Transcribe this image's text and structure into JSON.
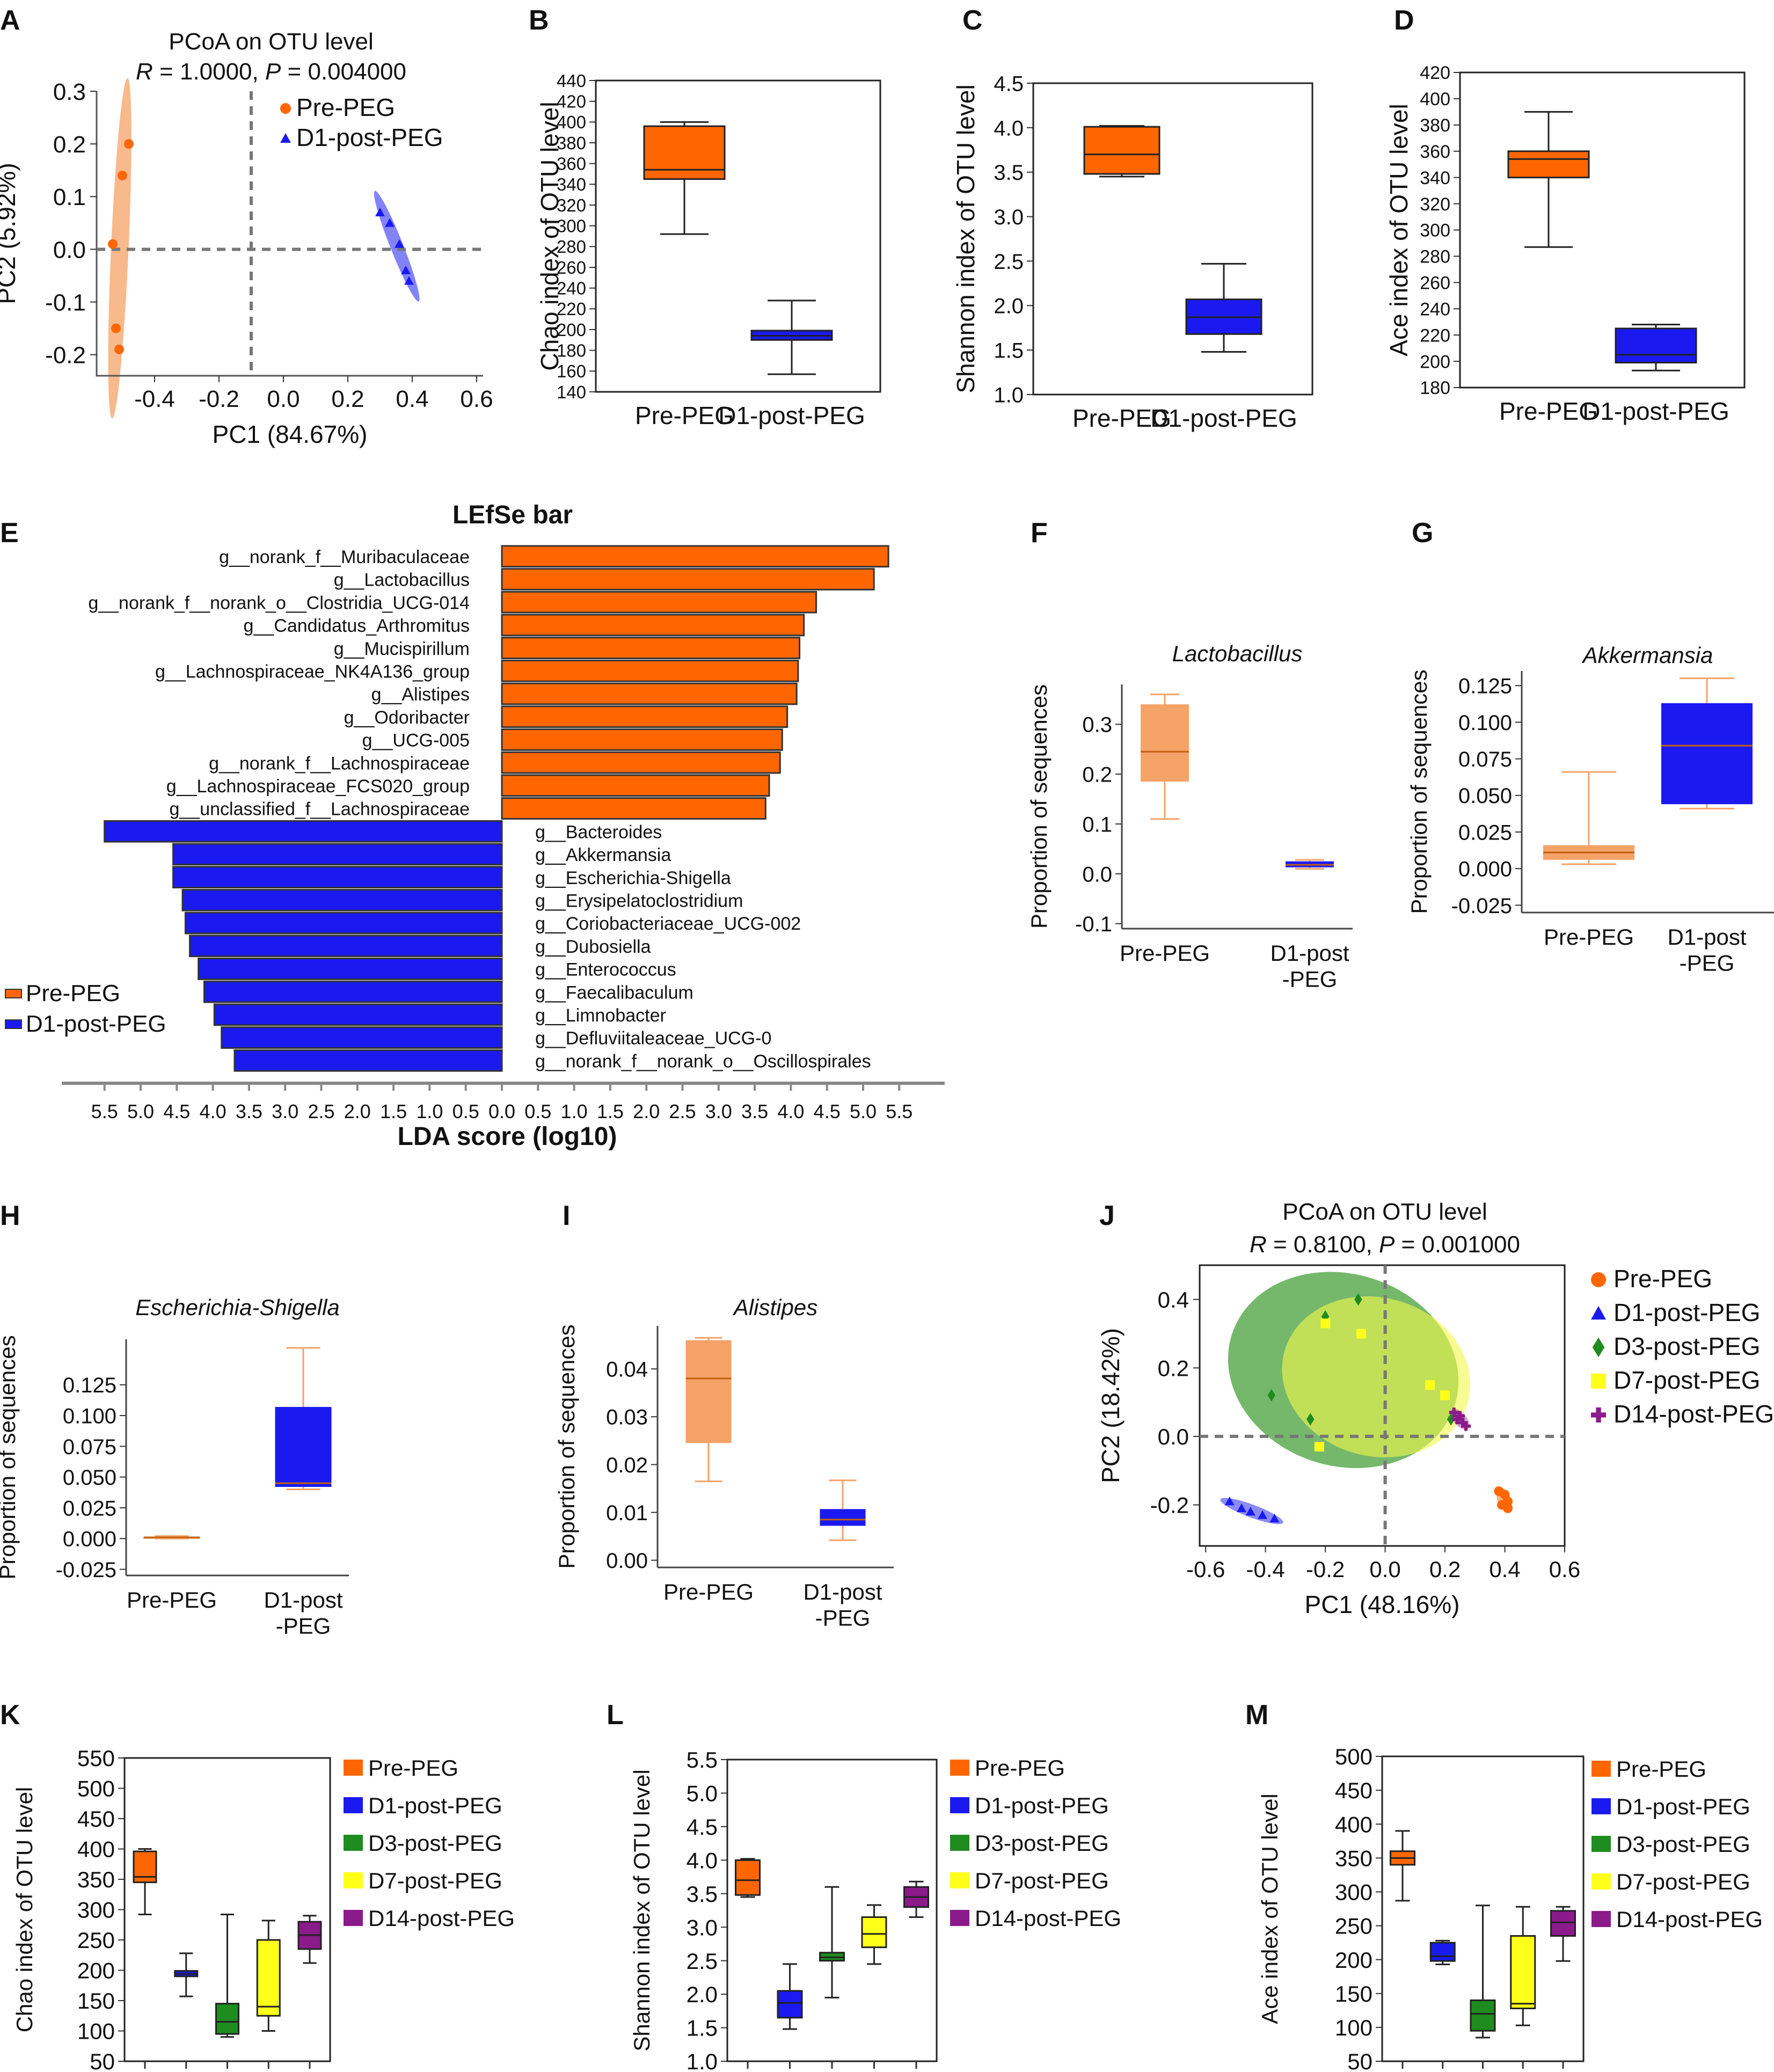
{
  "colors": {
    "pre": "#FF6600",
    "post": "#1A1AF0",
    "d3": "#1E8C1E",
    "d7": "#FFFF1A",
    "d14": "#8B1A8B",
    "pre_light": "#F5A267",
    "post_light": "#5A5AF5",
    "axis": "#333333",
    "dash": "#777777"
  },
  "panels": {
    "A": {
      "letter": "A",
      "title": "PCoA on OTU level",
      "stat_r": "R",
      "stat_r_val": " = 1.0000, ",
      "stat_p": "P",
      "stat_p_val": " = 0.004000"
    },
    "B": {
      "letter": "B"
    },
    "C": {
      "letter": "C"
    },
    "D": {
      "letter": "D"
    },
    "E": {
      "letter": "E"
    },
    "F": {
      "letter": "F"
    },
    "G": {
      "letter": "G"
    },
    "H": {
      "letter": "H"
    },
    "I": {
      "letter": "I"
    },
    "J": {
      "letter": "J",
      "title": "PCoA on OTU level",
      "stat_r": "R",
      "stat_r_val": " = 0.8100, ",
      "stat_p": "P",
      "stat_p_val": " = 0.001000"
    },
    "K": {
      "letter": "K"
    },
    "L": {
      "letter": "L"
    },
    "M": {
      "letter": "M"
    }
  },
  "chart_data": [
    {
      "id": "A",
      "type": "scatter",
      "title": "PCoA on OTU level",
      "xlabel": "PC1 (84.67%)",
      "ylabel": "PC2 (5.92%)",
      "xlim": [
        -0.58,
        0.62
      ],
      "ylim": [
        -0.24,
        0.3
      ],
      "xticks": [
        "-0.4",
        "-0.2",
        "0.0",
        "0.2",
        "0.4",
        "0.6"
      ],
      "yticks": [
        "0.3",
        "0.2",
        "0.1",
        "0.0",
        "-0.1",
        "-0.2"
      ],
      "legend": [
        "Pre-PEG",
        "D1-post-PEG"
      ],
      "series": [
        {
          "name": "Pre-PEG",
          "marker": "circle",
          "x": [
            -0.48,
            -0.5,
            -0.53,
            -0.52,
            -0.51
          ],
          "y": [
            0.2,
            0.14,
            0.01,
            -0.15,
            -0.19
          ]
        },
        {
          "name": "D1-post-PEG",
          "marker": "triangle",
          "x": [
            0.3,
            0.33,
            0.36,
            0.38,
            0.39
          ],
          "y": [
            0.07,
            0.05,
            0.01,
            -0.04,
            -0.06
          ]
        }
      ]
    },
    {
      "id": "B",
      "type": "box",
      "ylabel": "Chao index of OTU level",
      "ylim": [
        140,
        440
      ],
      "yticks": [
        "440",
        "420",
        "400",
        "380",
        "360",
        "340",
        "320",
        "300",
        "280",
        "260",
        "240",
        "220",
        "200",
        "180",
        "160",
        "140"
      ],
      "categories": [
        "Pre-PEG",
        "D1-post-PEG"
      ],
      "boxes": [
        {
          "name": "Pre-PEG",
          "min": 292,
          "q1": 345,
          "median": 354,
          "q3": 396,
          "max": 400
        },
        {
          "name": "D1-post-PEG",
          "min": 157,
          "q1": 190,
          "median": 194,
          "q3": 199,
          "max": 228
        }
      ]
    },
    {
      "id": "C",
      "type": "box",
      "ylabel": "Shannon index of OTU level",
      "ylim": [
        1.0,
        4.5
      ],
      "yticks": [
        "4.5",
        "4.0",
        "3.5",
        "3.0",
        "2.5",
        "2.0",
        "1.5",
        "1.0"
      ],
      "categories": [
        "Pre-PEG",
        "D1-post-PEG"
      ],
      "boxes": [
        {
          "name": "Pre-PEG",
          "min": 3.45,
          "q1": 3.48,
          "median": 3.7,
          "q3": 4.01,
          "max": 4.02
        },
        {
          "name": "D1-post-PEG",
          "min": 1.48,
          "q1": 1.68,
          "median": 1.87,
          "q3": 2.07,
          "max": 2.47
        }
      ]
    },
    {
      "id": "D",
      "type": "box",
      "ylabel": "Ace index of OTU level",
      "ylim": [
        180,
        420
      ],
      "yticks": [
        "420",
        "400",
        "380",
        "360",
        "340",
        "320",
        "300",
        "280",
        "260",
        "240",
        "220",
        "200",
        "180"
      ],
      "categories": [
        "Pre-PEG",
        "D1-post-PEG"
      ],
      "boxes": [
        {
          "name": "Pre-PEG",
          "min": 287,
          "q1": 340,
          "median": 354,
          "q3": 360,
          "max": 390
        },
        {
          "name": "D1-post-PEG",
          "min": 193,
          "q1": 199,
          "median": 205,
          "q3": 225,
          "max": 228
        }
      ]
    },
    {
      "id": "E",
      "type": "bar",
      "title": "LEfSe bar",
      "xlabel": "LDA score (log10)",
      "legend": [
        "Pre-PEG",
        "D1-post-PEG"
      ],
      "xticks_left": [
        "5.5",
        "5.0",
        "4.5",
        "4.0",
        "3.5",
        "3.0",
        "2.5",
        "2.0",
        "1.5",
        "1.0",
        "0.5"
      ],
      "xtick_zero": "0.0",
      "xticks_right": [
        "0.5",
        "1.0",
        "1.5",
        "2.0",
        "2.5",
        "3.0",
        "3.5",
        "4.0",
        "4.5",
        "5.0",
        "5.5"
      ],
      "series": [
        {
          "name": "Pre-PEG",
          "categories": [
            "g__norank_f__Muribaculaceae",
            "g__Lactobacillus",
            "g__norank_f__norank_o__Clostridia_UCG-014",
            "g__Candidatus_Arthromitus",
            "g__Mucispirillum",
            "g__Lachnospiraceae_NK4A136_group",
            "g__Alistipes",
            "g__Odoribacter",
            "g__UCG-005",
            "g__norank_f__Lachnospiraceae",
            "g__Lachnospiraceae_FCS020_group",
            "g__unclassified_f__Lachnospiraceae"
          ],
          "values": [
            5.35,
            5.15,
            4.35,
            4.18,
            4.12,
            4.1,
            4.08,
            3.95,
            3.88,
            3.85,
            3.7,
            3.65
          ]
        },
        {
          "name": "D1-post-PEG",
          "categories": [
            "g__Bacteroides",
            "g__Akkermansia",
            "g__Escherichia-Shigella",
            "g__Erysipelatoclostridium",
            "g__Coriobacteriaceae_UCG-002",
            "g__Dubosiella",
            "g__Enterococcus",
            "g__Faecalibaculum",
            "g__Limnobacter",
            "g__Defluviitaleaceae_UCG-0",
            "g__norank_f__norank_o__Oscillospirales"
          ],
          "values": [
            5.5,
            4.55,
            4.55,
            4.42,
            4.38,
            4.32,
            4.2,
            4.12,
            3.98,
            3.88,
            3.7
          ]
        }
      ]
    },
    {
      "id": "F",
      "type": "box",
      "title": "Lactobacillus",
      "ylabel": "Proportion of sequences",
      "ylim": [
        -0.11,
        0.38
      ],
      "yticks": [
        "0.3",
        "0.2",
        "0.1",
        "0.0",
        "-0.1"
      ],
      "categories": [
        "Pre-PEG",
        "D1-post\n-PEG"
      ],
      "boxes": [
        {
          "name": "Pre-PEG",
          "min": 0.11,
          "q1": 0.185,
          "median": 0.245,
          "q3": 0.34,
          "max": 0.36
        },
        {
          "name": "D1-post-PEG",
          "min": 0.01,
          "q1": 0.013,
          "median": 0.018,
          "q3": 0.025,
          "max": 0.028
        }
      ]
    },
    {
      "id": "G",
      "type": "box",
      "title": "Akkermansia",
      "ylabel": "Proportion of sequences",
      "ylim": [
        -0.03,
        0.135
      ],
      "yticks": [
        "0.125",
        "0.100",
        "0.075",
        "0.050",
        "0.025",
        "0.000",
        "-0.025"
      ],
      "categories": [
        "Pre-PEG",
        "D1-post\n-PEG"
      ],
      "boxes": [
        {
          "name": "Pre-PEG",
          "min": 0.003,
          "q1": 0.006,
          "median": 0.011,
          "q3": 0.016,
          "max": 0.066
        },
        {
          "name": "D1-post-PEG",
          "min": 0.041,
          "q1": 0.044,
          "median": 0.084,
          "q3": 0.113,
          "max": 0.13
        }
      ]
    },
    {
      "id": "H",
      "type": "box",
      "title": "Escherichia-Shigella",
      "ylabel": "Proportion of sequences",
      "ylim": [
        -0.03,
        0.162
      ],
      "yticks": [
        "0.125",
        "0.100",
        "0.075",
        "0.050",
        "0.025",
        "0.000",
        "-0.025"
      ],
      "categories": [
        "Pre-PEG",
        "D1-post\n-PEG"
      ],
      "boxes": [
        {
          "name": "Pre-PEG",
          "min": 0.0,
          "q1": 0.0005,
          "median": 0.001,
          "q3": 0.0015,
          "max": 0.002
        },
        {
          "name": "D1-post-PEG",
          "min": 0.04,
          "q1": 0.042,
          "median": 0.045,
          "q3": 0.107,
          "max": 0.155
        }
      ]
    },
    {
      "id": "I",
      "type": "box",
      "title": "Alistipes",
      "ylabel": "Proportion of sequences",
      "ylim": [
        -0.0015,
        0.049
      ],
      "yticks": [
        "0.04",
        "0.03",
        "0.02",
        "0.01",
        "0.00"
      ],
      "categories": [
        "Pre-PEG",
        "D1-post\n-PEG"
      ],
      "boxes": [
        {
          "name": "Pre-PEG",
          "min": 0.0165,
          "q1": 0.0245,
          "median": 0.038,
          "q3": 0.046,
          "max": 0.0465
        },
        {
          "name": "D1-post-PEG",
          "min": 0.0042,
          "q1": 0.0072,
          "median": 0.0085,
          "q3": 0.0107,
          "max": 0.0167
        }
      ]
    },
    {
      "id": "J",
      "type": "scatter",
      "title": "PCoA on OTU level",
      "xlabel": "PC1 (48.16%)",
      "ylabel": "PC2 (18.42%)",
      "xlim": [
        -0.62,
        0.6
      ],
      "ylim": [
        -0.32,
        0.5
      ],
      "xticks": [
        "-0.6",
        "-0.4",
        "-0.2",
        "0.0",
        "0.2",
        "0.4",
        "0.6"
      ],
      "yticks": [
        "0.4",
        "0.2",
        "0.0",
        "-0.2"
      ],
      "legend": [
        "Pre-PEG",
        "D1-post-PEG",
        "D3-post-PEG",
        "D7-post-PEG",
        "D14-post-PEG"
      ],
      "series": [
        {
          "name": "Pre-PEG",
          "marker": "circle",
          "x": [
            0.38,
            0.4,
            0.41,
            0.39,
            0.41
          ],
          "y": [
            -0.16,
            -0.17,
            -0.19,
            -0.2,
            -0.21
          ]
        },
        {
          "name": "D1-post-PEG",
          "marker": "triangle",
          "x": [
            -0.52,
            -0.48,
            -0.45,
            -0.41,
            -0.37
          ],
          "y": [
            -0.19,
            -0.21,
            -0.22,
            -0.23,
            -0.24
          ]
        },
        {
          "name": "D3-post-PEG",
          "marker": "diamond",
          "x": [
            -0.2,
            -0.09,
            -0.38,
            -0.25,
            0.22
          ],
          "y": [
            0.35,
            0.4,
            0.12,
            0.05,
            0.05
          ]
        },
        {
          "name": "D7-post-PEG",
          "marker": "square",
          "x": [
            -0.2,
            -0.08,
            0.15,
            0.2,
            -0.22
          ],
          "y": [
            0.33,
            0.3,
            0.15,
            0.12,
            -0.03
          ]
        },
        {
          "name": "D14-post-PEG",
          "marker": "plus",
          "x": [
            0.23,
            0.25,
            0.26,
            0.27,
            0.24
          ],
          "y": [
            0.07,
            0.06,
            0.04,
            0.03,
            0.05
          ]
        }
      ]
    },
    {
      "id": "K",
      "type": "box",
      "ylabel": "Chao index of OTU level",
      "ylim": [
        50,
        550
      ],
      "yticks": [
        "550",
        "500",
        "450",
        "400",
        "350",
        "300",
        "250",
        "200",
        "150",
        "100",
        "50"
      ],
      "legend": [
        "Pre-PEG",
        "D1-post-PEG",
        "D3-post-PEG",
        "D7-post-PEG",
        "D14-post-PEG"
      ],
      "categories": [
        "Pre-PEG",
        "D1-post-PEG",
        "D3-post-PEG",
        "D7-post-PEG",
        "D14-post-PEG"
      ],
      "boxes": [
        {
          "name": "Pre-PEG",
          "min": 292,
          "q1": 345,
          "median": 354,
          "q3": 396,
          "max": 400
        },
        {
          "name": "D1-post-PEG",
          "min": 157,
          "q1": 190,
          "median": 194,
          "q3": 199,
          "max": 228
        },
        {
          "name": "D3-post-PEG",
          "min": 90,
          "q1": 95,
          "median": 115,
          "q3": 145,
          "max": 292
        },
        {
          "name": "D7-post-PEG",
          "min": 100,
          "q1": 125,
          "median": 140,
          "q3": 250,
          "max": 282
        },
        {
          "name": "D14-post-PEG",
          "min": 212,
          "q1": 235,
          "median": 258,
          "q3": 280,
          "max": 290
        }
      ]
    },
    {
      "id": "L",
      "type": "box",
      "ylabel": "Shannon index of OTU level",
      "ylim": [
        1.0,
        5.5
      ],
      "yticks": [
        "5.5",
        "5.0",
        "4.5",
        "4.0",
        "3.5",
        "3.0",
        "2.5",
        "2.0",
        "1.5",
        "1.0"
      ],
      "legend": [
        "Pre-PEG",
        "D1-post-PEG",
        "D3-post-PEG",
        "D7-post-PEG",
        "D14-post-PEG"
      ],
      "categories": [
        "Pre-PEG",
        "D1-post-PEG",
        "D3-post-PEG",
        "D7-post-PEG",
        "D14-post-PEG"
      ],
      "boxes": [
        {
          "name": "Pre-PEG",
          "min": 3.45,
          "q1": 3.48,
          "median": 3.7,
          "q3": 4.0,
          "max": 4.02
        },
        {
          "name": "D1-post-PEG",
          "min": 1.48,
          "q1": 1.65,
          "median": 1.87,
          "q3": 2.05,
          "max": 2.45
        },
        {
          "name": "D3-post-PEG",
          "min": 1.95,
          "q1": 2.5,
          "median": 2.55,
          "q3": 2.62,
          "max": 3.6
        },
        {
          "name": "D7-post-PEG",
          "min": 2.45,
          "q1": 2.7,
          "median": 2.9,
          "q3": 3.15,
          "max": 3.33
        },
        {
          "name": "D14-post-PEG",
          "min": 3.15,
          "q1": 3.3,
          "median": 3.45,
          "q3": 3.6,
          "max": 3.68
        }
      ]
    },
    {
      "id": "M",
      "type": "box",
      "ylabel": "Ace index of OTU level",
      "ylim": [
        50,
        500
      ],
      "yticks": [
        "500",
        "450",
        "400",
        "350",
        "300",
        "250",
        "200",
        "150",
        "100",
        "50"
      ],
      "legend": [
        "Pre-PEG",
        "D1-post-PEG",
        "D3-post-PEG",
        "D7-post-PEG",
        "D14-post-PEG"
      ],
      "categories": [
        "Pre-PEG",
        "D1-post-PEG",
        "D3-post-PEG",
        "D7-post-PEG",
        "D14-post-PEG"
      ],
      "boxes": [
        {
          "name": "Pre-PEG",
          "min": 287,
          "q1": 340,
          "median": 350,
          "q3": 360,
          "max": 390
        },
        {
          "name": "D1-post-PEG",
          "min": 193,
          "q1": 198,
          "median": 205,
          "q3": 225,
          "max": 228
        },
        {
          "name": "D3-post-PEG",
          "min": 85,
          "q1": 95,
          "median": 120,
          "q3": 140,
          "max": 280
        },
        {
          "name": "D7-post-PEG",
          "min": 103,
          "q1": 128,
          "median": 135,
          "q3": 235,
          "max": 278
        },
        {
          "name": "D14-post-PEG",
          "min": 198,
          "q1": 235,
          "median": 255,
          "q3": 272,
          "max": 278
        }
      ]
    }
  ]
}
